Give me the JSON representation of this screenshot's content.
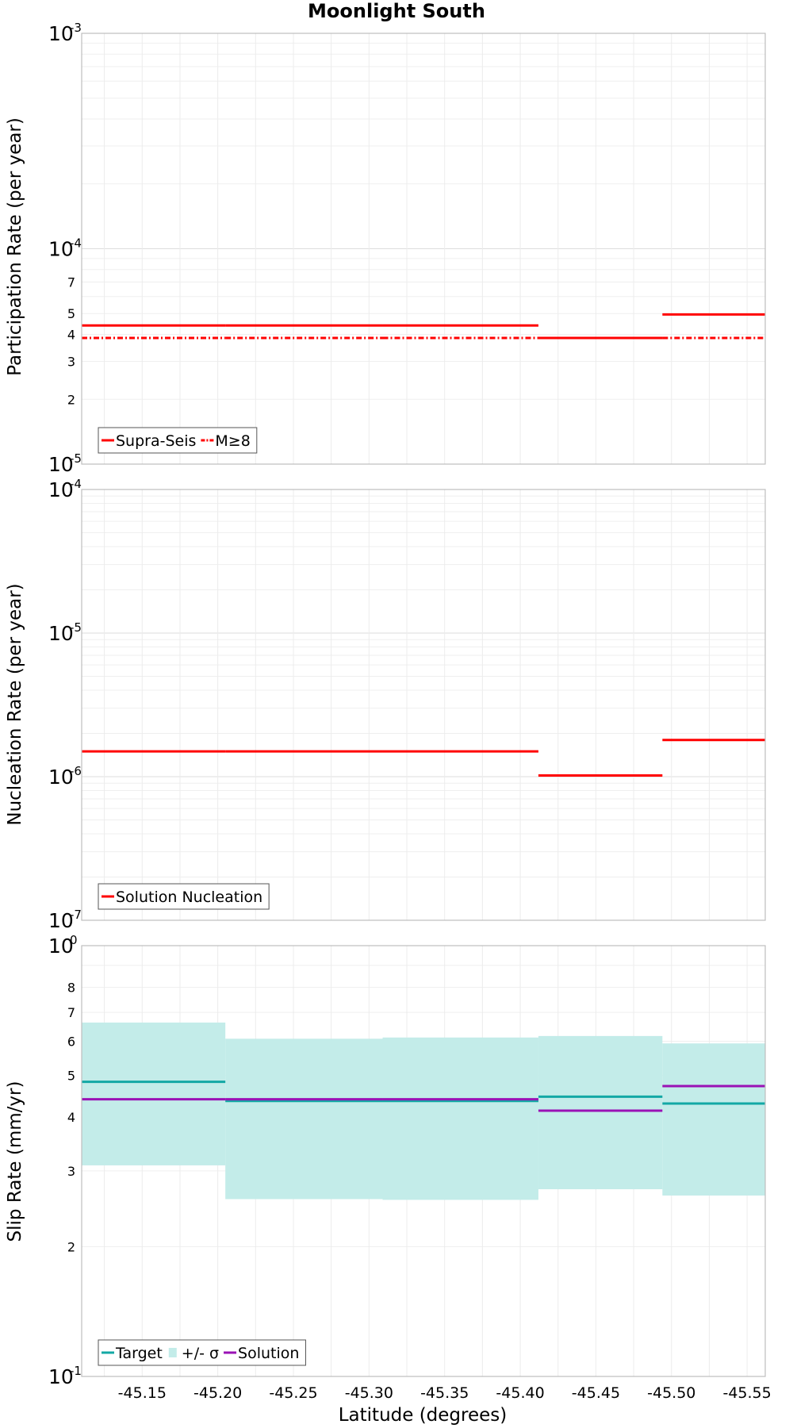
{
  "chart_data": {
    "type": "line",
    "title": "Moonlight South",
    "xlabel": "Latitude (degrees)",
    "xlim": [
      -45.11,
      -45.562
    ],
    "x_ticks": [
      "-45.15",
      "-45.20",
      "-45.25",
      "-45.30",
      "-45.35",
      "-45.40",
      "-45.45",
      "-45.50",
      "-45.55"
    ],
    "x_tick_values": [
      -45.15,
      -45.2,
      -45.25,
      -45.3,
      -45.35,
      -45.4,
      -45.45,
      -45.5,
      -45.55
    ],
    "section_bounds": [
      -45.11,
      -45.205,
      -45.309,
      -45.412,
      -45.494,
      -45.562
    ],
    "panels": [
      {
        "ylabel": "Participation Rate (per year)",
        "yscale": "log",
        "ylim": [
          1e-05,
          0.001
        ],
        "y_ticks_major": [
          {
            "value": 1e-05,
            "base": "10",
            "exp": "-5"
          },
          {
            "value": 0.0001,
            "base": "10",
            "exp": "-4"
          },
          {
            "value": 0.001,
            "base": "10",
            "exp": "-3"
          }
        ],
        "y_ticks_minor_labels": [
          "2",
          "3",
          "4",
          "5",
          "7"
        ],
        "series": [
          {
            "name": "Supra-Seis",
            "color": "#ff0000",
            "style": "solid",
            "steps": [
              [
                -45.11,
                -45.205,
                4.4e-05
              ],
              [
                -45.205,
                -45.309,
                4.4e-05
              ],
              [
                -45.309,
                -45.412,
                4.4e-05
              ],
              [
                -45.412,
                -45.494,
                3.85e-05
              ],
              [
                -45.494,
                -45.562,
                4.95e-05
              ]
            ]
          },
          {
            "name": "M≥8",
            "color": "#ff0000",
            "style": "dashdot",
            "steps": [
              [
                -45.11,
                -45.205,
                3.85e-05
              ],
              [
                -45.205,
                -45.309,
                3.85e-05
              ],
              [
                -45.309,
                -45.412,
                3.85e-05
              ],
              [
                -45.412,
                -45.494,
                3.85e-05
              ],
              [
                -45.494,
                -45.562,
                3.85e-05
              ]
            ]
          }
        ],
        "legend": [
          "Supra-Seis",
          "M≥8"
        ]
      },
      {
        "ylabel": "Nucleation Rate (per year)",
        "yscale": "log",
        "ylim": [
          1e-07,
          0.0001
        ],
        "y_ticks_major": [
          {
            "value": 1e-07,
            "base": "10",
            "exp": "-7"
          },
          {
            "value": 1e-06,
            "base": "10",
            "exp": "-6"
          },
          {
            "value": 1e-05,
            "base": "10",
            "exp": "-5"
          },
          {
            "value": 0.0001,
            "base": "10",
            "exp": "-4"
          }
        ],
        "y_ticks_minor_labels": [],
        "series": [
          {
            "name": "Solution Nucleation",
            "color": "#ff0000",
            "style": "solid",
            "steps": [
              [
                -45.11,
                -45.205,
                1.5e-06
              ],
              [
                -45.205,
                -45.309,
                1.5e-06
              ],
              [
                -45.309,
                -45.412,
                1.5e-06
              ],
              [
                -45.412,
                -45.494,
                1.02e-06
              ],
              [
                -45.494,
                -45.562,
                1.8e-06
              ]
            ]
          }
        ],
        "legend": [
          "Solution Nucleation"
        ]
      },
      {
        "ylabel": "Slip Rate (mm/yr)",
        "yscale": "log",
        "ylim": [
          0.1,
          1
        ],
        "y_ticks_major": [
          {
            "value": 0.1,
            "base": "10",
            "exp": "-1"
          },
          {
            "value": 1,
            "base": "10",
            "exp": "0"
          }
        ],
        "y_ticks_minor_labels": [
          "2",
          "3",
          "4",
          "5",
          "6",
          "7",
          "8"
        ],
        "band": {
          "name": "+/- σ",
          "color": "#c3ece9",
          "steps": [
            [
              -45.11,
              -45.205,
              0.309,
              0.663
            ],
            [
              -45.205,
              -45.309,
              0.258,
              0.608
            ],
            [
              -45.309,
              -45.412,
              0.257,
              0.612
            ],
            [
              -45.412,
              -45.494,
              0.272,
              0.617
            ],
            [
              -45.494,
              -45.562,
              0.263,
              0.593
            ]
          ]
        },
        "series": [
          {
            "name": "Target",
            "color": "#13a8a5",
            "style": "solid",
            "steps": [
              [
                -45.11,
                -45.205,
                0.483
              ],
              [
                -45.205,
                -45.309,
                0.436
              ],
              [
                -45.309,
                -45.412,
                0.436
              ],
              [
                -45.412,
                -45.494,
                0.446
              ],
              [
                -45.494,
                -45.562,
                0.43
              ]
            ]
          },
          {
            "name": "Solution",
            "color": "#9a12b5",
            "style": "solid",
            "steps": [
              [
                -45.11,
                -45.205,
                0.44
              ],
              [
                -45.205,
                -45.309,
                0.44
              ],
              [
                -45.309,
                -45.412,
                0.44
              ],
              [
                -45.412,
                -45.494,
                0.414
              ],
              [
                -45.494,
                -45.562,
                0.472
              ]
            ]
          }
        ],
        "legend": [
          "Target",
          "+/- σ",
          "Solution"
        ]
      }
    ]
  }
}
